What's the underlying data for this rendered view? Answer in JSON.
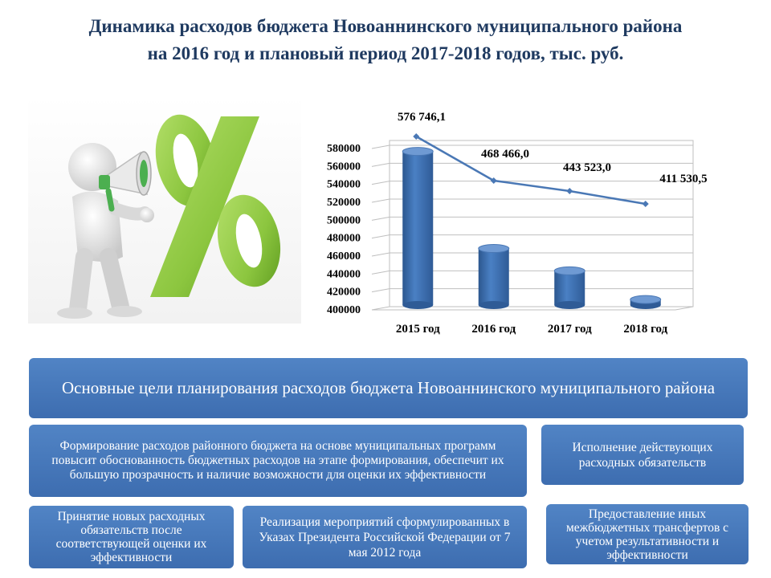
{
  "title": {
    "line1": "Динамика расходов бюджета Новоаннинского муниципального района",
    "line2": "на 2016 год и плановый период 2017-2018 годов, тыс. руб."
  },
  "chart_data": {
    "type": "bar",
    "categories": [
      "2015 год",
      "2016 год",
      "2017 год",
      "2018 год"
    ],
    "series": [
      {
        "kind": "bar",
        "values": [
          576746.1,
          468466.0,
          443523.0,
          411530.5
        ]
      },
      {
        "kind": "line",
        "values": [
          576746.1,
          468466.0,
          443523.0,
          411530.5
        ],
        "data_labels": [
          "576 746,1",
          "468 466,0",
          "443 523,0",
          "411 530,5"
        ]
      }
    ],
    "ylim": [
      400000,
      580000
    ],
    "yticks": [
      "400000",
      "420000",
      "440000",
      "460000",
      "480000",
      "500000",
      "520000",
      "540000",
      "560000",
      "580000"
    ],
    "grid": true,
    "colors": {
      "bar": "#3e6fb3",
      "line": "#4a78b5"
    }
  },
  "goals": {
    "header": "Основные цели  планирования расходов бюджета Новоаннинского муниципального района",
    "item_formation": "Формирование расходов районного бюджета на основе муниципальных программ повысит обоснованность бюджетных расходов на этапе формирования, обеспечит их большую прозрачность и наличие возможности для оценки  их эффективности",
    "item_execution": "Исполнение действующих расходных обязательств",
    "item_new_obligations": "Принятие новых расходных обязательств после соответствующей оценки их эффективности",
    "item_decrees": "Реализация  мероприятий сформулированных в Указах Президента Российской Федерации от 7 мая 2012 года",
    "item_transfers": "Предоставление иных межбюджетных трансфертов с учетом результативности и эффективности"
  },
  "illustration": {
    "icon": "person-megaphone-percent",
    "colors": {
      "percent": "#8cc63f",
      "figure": "#e6e6e6"
    }
  }
}
